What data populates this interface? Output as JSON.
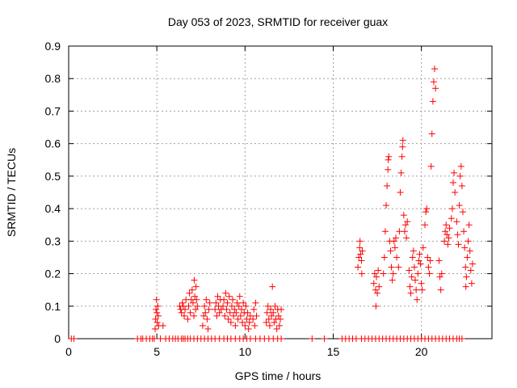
{
  "chart_data": {
    "type": "scatter",
    "title": "Day 053 of 2023, SRMTID for receiver guax",
    "xlabel": "GPS time / hours",
    "ylabel": "SRMTID / TECUs",
    "xlim": [
      0,
      24
    ],
    "ylim": [
      0,
      0.9
    ],
    "xticks": [
      0,
      5,
      10,
      15,
      20
    ],
    "yticks": [
      0,
      0.1,
      0.2,
      0.3,
      0.4,
      0.5,
      0.6,
      0.7,
      0.8,
      0.9
    ],
    "ytick_labels": [
      "0",
      "0.1",
      "0.2",
      "0.3",
      "0.4",
      "0.5",
      "0.6",
      "0.7",
      "0.8",
      "0.9"
    ],
    "grid": true,
    "marker": "+",
    "color": "#ff0000",
    "series": [
      {
        "name": "SRMTID",
        "points": [
          [
            0.15,
            0
          ],
          [
            0.3,
            0
          ],
          [
            3.9,
            0
          ],
          [
            4.1,
            0
          ],
          [
            4.2,
            0
          ],
          [
            4.4,
            0
          ],
          [
            4.6,
            0
          ],
          [
            4.75,
            0
          ],
          [
            4.85,
            0
          ],
          [
            4.9,
            0.03
          ],
          [
            4.92,
            0.06
          ],
          [
            4.95,
            0.09
          ],
          [
            4.98,
            0.12
          ],
          [
            5.0,
            0.08
          ],
          [
            5.02,
            0.05
          ],
          [
            5.05,
            0.1
          ],
          [
            5.08,
            0.07
          ],
          [
            5.1,
            0.04
          ],
          [
            5.2,
            0
          ],
          [
            5.35,
            0.04
          ],
          [
            5.5,
            0
          ],
          [
            5.7,
            0
          ],
          [
            5.9,
            0
          ],
          [
            6.05,
            0
          ],
          [
            6.2,
            0
          ],
          [
            6.4,
            0
          ],
          [
            6.5,
            0
          ],
          [
            6.6,
            0
          ],
          [
            6.75,
            0
          ],
          [
            6.9,
            0
          ],
          [
            7.1,
            0
          ],
          [
            7.3,
            0
          ],
          [
            7.5,
            0
          ],
          [
            7.7,
            0
          ],
          [
            7.9,
            0
          ],
          [
            8.1,
            0
          ],
          [
            8.3,
            0
          ],
          [
            8.55,
            0
          ],
          [
            8.8,
            0
          ],
          [
            9.0,
            0
          ],
          [
            9.2,
            0
          ],
          [
            9.45,
            0
          ],
          [
            9.7,
            0
          ],
          [
            9.9,
            0
          ],
          [
            10.1,
            0
          ],
          [
            10.3,
            0
          ],
          [
            10.6,
            0
          ],
          [
            10.85,
            0
          ],
          [
            11.1,
            0
          ],
          [
            11.35,
            0
          ],
          [
            11.6,
            0
          ],
          [
            11.85,
            0
          ],
          [
            12.05,
            0
          ],
          [
            6.3,
            0.1
          ],
          [
            6.35,
            0.09
          ],
          [
            6.4,
            0.08
          ],
          [
            6.45,
            0.11
          ],
          [
            6.5,
            0.1
          ],
          [
            6.55,
            0.07
          ],
          [
            6.6,
            0.09
          ],
          [
            6.65,
            0.12
          ],
          [
            6.75,
            0.06
          ],
          [
            6.8,
            0.1
          ],
          [
            6.85,
            0.14
          ],
          [
            6.9,
            0.08
          ],
          [
            6.95,
            0.12
          ],
          [
            7.0,
            0.15
          ],
          [
            7.05,
            0.11
          ],
          [
            7.1,
            0.07
          ],
          [
            7.12,
            0.18
          ],
          [
            7.15,
            0.13
          ],
          [
            7.2,
            0.09
          ],
          [
            7.22,
            0.16
          ],
          [
            7.25,
            0.12
          ],
          [
            7.3,
            0.1
          ],
          [
            7.6,
            0.04
          ],
          [
            7.65,
            0.07
          ],
          [
            7.7,
            0.1
          ],
          [
            7.75,
            0.08
          ],
          [
            7.8,
            0.12
          ],
          [
            7.85,
            0.06
          ],
          [
            7.9,
            0.03
          ],
          [
            7.95,
            0.09
          ],
          [
            8.0,
            0.11
          ],
          [
            8.3,
            0.09
          ],
          [
            8.35,
            0.11
          ],
          [
            8.4,
            0.07
          ],
          [
            8.45,
            0.13
          ],
          [
            8.5,
            0.1
          ],
          [
            8.55,
            0.08
          ],
          [
            8.6,
            0.12
          ],
          [
            8.65,
            0.09
          ],
          [
            8.75,
            0.1
          ],
          [
            8.8,
            0.12
          ],
          [
            8.85,
            0.07
          ],
          [
            8.9,
            0.14
          ],
          [
            8.95,
            0.09
          ],
          [
            9.0,
            0.11
          ],
          [
            9.05,
            0.06
          ],
          [
            9.1,
            0.13
          ],
          [
            9.15,
            0.08
          ],
          [
            9.2,
            0.05
          ],
          [
            9.25,
            0.1
          ],
          [
            9.3,
            0.12
          ],
          [
            9.35,
            0.07
          ],
          [
            9.4,
            0.09
          ],
          [
            9.45,
            0.04
          ],
          [
            9.5,
            0.08
          ],
          [
            9.55,
            0.11
          ],
          [
            9.6,
            0.06
          ],
          [
            9.65,
            0.1
          ],
          [
            9.7,
            0.13
          ],
          [
            9.75,
            0.07
          ],
          [
            9.8,
            0.09
          ],
          [
            9.85,
            0.05
          ],
          [
            9.9,
            0.11
          ],
          [
            9.95,
            0.08
          ],
          [
            10.0,
            0.04
          ],
          [
            10.05,
            0.1
          ],
          [
            10.1,
            0.06
          ],
          [
            10.15,
            0.08
          ],
          [
            10.2,
            0.03
          ],
          [
            10.25,
            0.05
          ],
          [
            10.3,
            0.07
          ],
          [
            10.45,
            0.06
          ],
          [
            10.5,
            0.09
          ],
          [
            10.55,
            0.04
          ],
          [
            10.6,
            0.11
          ],
          [
            10.65,
            0.07
          ],
          [
            11.2,
            0.05
          ],
          [
            11.25,
            0.08
          ],
          [
            11.3,
            0.1
          ],
          [
            11.35,
            0.06
          ],
          [
            11.4,
            0.04
          ],
          [
            11.45,
            0.09
          ],
          [
            11.5,
            0.07
          ],
          [
            11.55,
            0.16
          ],
          [
            11.6,
            0.08
          ],
          [
            11.65,
            0.05
          ],
          [
            11.7,
            0.1
          ],
          [
            11.75,
            0.06
          ],
          [
            11.8,
            0.03
          ],
          [
            11.85,
            0.09
          ],
          [
            11.9,
            0.07
          ],
          [
            11.95,
            0.04
          ],
          [
            12.0,
            0.06
          ],
          [
            12.05,
            0.09
          ],
          [
            13.8,
            0
          ],
          [
            14.5,
            0
          ],
          [
            15.5,
            0
          ],
          [
            15.7,
            0
          ],
          [
            15.9,
            0
          ],
          [
            16.1,
            0
          ],
          [
            16.3,
            0
          ],
          [
            16.6,
            0
          ],
          [
            16.8,
            0
          ],
          [
            17.0,
            0
          ],
          [
            17.2,
            0
          ],
          [
            17.4,
            0
          ],
          [
            17.6,
            0
          ],
          [
            17.8,
            0
          ],
          [
            18.0,
            0
          ],
          [
            18.2,
            0
          ],
          [
            18.4,
            0
          ],
          [
            18.6,
            0
          ],
          [
            18.8,
            0
          ],
          [
            19.0,
            0
          ],
          [
            19.2,
            0
          ],
          [
            19.4,
            0
          ],
          [
            19.6,
            0
          ],
          [
            19.8,
            0
          ],
          [
            20.0,
            0
          ],
          [
            20.2,
            0
          ],
          [
            20.4,
            0
          ],
          [
            20.6,
            0
          ],
          [
            20.8,
            0
          ],
          [
            21.0,
            0
          ],
          [
            21.2,
            0
          ],
          [
            21.4,
            0
          ],
          [
            21.6,
            0
          ],
          [
            21.8,
            0
          ],
          [
            22.0,
            0
          ],
          [
            22.15,
            0
          ],
          [
            22.3,
            0
          ],
          [
            16.4,
            0.22
          ],
          [
            16.45,
            0.25
          ],
          [
            16.5,
            0.28
          ],
          [
            16.52,
            0.3
          ],
          [
            16.55,
            0.26
          ],
          [
            16.6,
            0.24
          ],
          [
            16.62,
            0.2
          ],
          [
            16.65,
            0.27
          ],
          [
            17.3,
            0.17
          ],
          [
            17.35,
            0.2
          ],
          [
            17.4,
            0.15
          ],
          [
            17.42,
            0.1
          ],
          [
            17.45,
            0.19
          ],
          [
            17.5,
            0.14
          ],
          [
            17.55,
            0.21
          ],
          [
            17.6,
            0.16
          ],
          [
            17.85,
            0.2
          ],
          [
            17.9,
            0.25
          ],
          [
            17.95,
            0.33
          ],
          [
            18.0,
            0.41
          ],
          [
            18.05,
            0.47
          ],
          [
            18.1,
            0.52
          ],
          [
            18.12,
            0.55
          ],
          [
            18.15,
            0.56
          ],
          [
            18.2,
            0.3
          ],
          [
            18.25,
            0.27
          ],
          [
            18.3,
            0.22
          ],
          [
            18.35,
            0.18
          ],
          [
            18.4,
            0.2
          ],
          [
            18.45,
            0.3
          ],
          [
            18.5,
            0.28
          ],
          [
            18.55,
            0.31
          ],
          [
            18.6,
            0.25
          ],
          [
            18.7,
            0.22
          ],
          [
            18.75,
            0.33
          ],
          [
            18.8,
            0.45
          ],
          [
            18.85,
            0.51
          ],
          [
            18.9,
            0.56
          ],
          [
            18.93,
            0.59
          ],
          [
            18.95,
            0.61
          ],
          [
            19.0,
            0.38
          ],
          [
            19.05,
            0.33
          ],
          [
            19.1,
            0.35
          ],
          [
            19.15,
            0.31
          ],
          [
            19.2,
            0.36
          ],
          [
            19.3,
            0.21
          ],
          [
            19.35,
            0.16
          ],
          [
            19.4,
            0.14
          ],
          [
            19.45,
            0.19
          ],
          [
            19.5,
            0.25
          ],
          [
            19.55,
            0.27
          ],
          [
            19.6,
            0.22
          ],
          [
            19.65,
            0.18
          ],
          [
            19.7,
            0.15
          ],
          [
            19.75,
            0.12
          ],
          [
            19.8,
            0.2
          ],
          [
            19.85,
            0.24
          ],
          [
            19.9,
            0.26
          ],
          [
            19.95,
            0.23
          ],
          [
            20.0,
            0.17
          ],
          [
            20.05,
            0.15
          ],
          [
            20.1,
            0.28
          ],
          [
            20.2,
            0.35
          ],
          [
            20.25,
            0.39
          ],
          [
            20.3,
            0.4
          ],
          [
            20.35,
            0.25
          ],
          [
            20.4,
            0.22
          ],
          [
            20.45,
            0.2
          ],
          [
            20.5,
            0.24
          ],
          [
            20.55,
            0.53
          ],
          [
            20.6,
            0.63
          ],
          [
            20.65,
            0.73
          ],
          [
            20.7,
            0.79
          ],
          [
            20.75,
            0.83
          ],
          [
            20.8,
            0.77
          ],
          [
            21.0,
            0.24
          ],
          [
            21.05,
            0.19
          ],
          [
            21.1,
            0.15
          ],
          [
            21.15,
            0.2
          ],
          [
            21.3,
            0.3
          ],
          [
            21.35,
            0.33
          ],
          [
            21.4,
            0.35
          ],
          [
            21.45,
            0.32
          ],
          [
            21.5,
            0.29
          ],
          [
            21.55,
            0.31
          ],
          [
            21.6,
            0.34
          ],
          [
            21.7,
            0.37
          ],
          [
            21.75,
            0.4
          ],
          [
            21.8,
            0.48
          ],
          [
            21.85,
            0.51
          ],
          [
            21.9,
            0.45
          ],
          [
            22.0,
            0.36
          ],
          [
            22.05,
            0.32
          ],
          [
            22.1,
            0.29
          ],
          [
            22.15,
            0.41
          ],
          [
            22.2,
            0.5
          ],
          [
            22.25,
            0.53
          ],
          [
            22.3,
            0.47
          ],
          [
            22.35,
            0.39
          ],
          [
            22.4,
            0.33
          ],
          [
            22.45,
            0.28
          ],
          [
            22.5,
            0.22
          ],
          [
            22.52,
            0.16
          ],
          [
            22.55,
            0.19
          ],
          [
            22.6,
            0.25
          ],
          [
            22.65,
            0.3
          ],
          [
            22.7,
            0.35
          ],
          [
            22.75,
            0.27
          ],
          [
            22.8,
            0.21
          ],
          [
            22.85,
            0.17
          ],
          [
            22.9,
            0.23
          ]
        ]
      }
    ]
  }
}
